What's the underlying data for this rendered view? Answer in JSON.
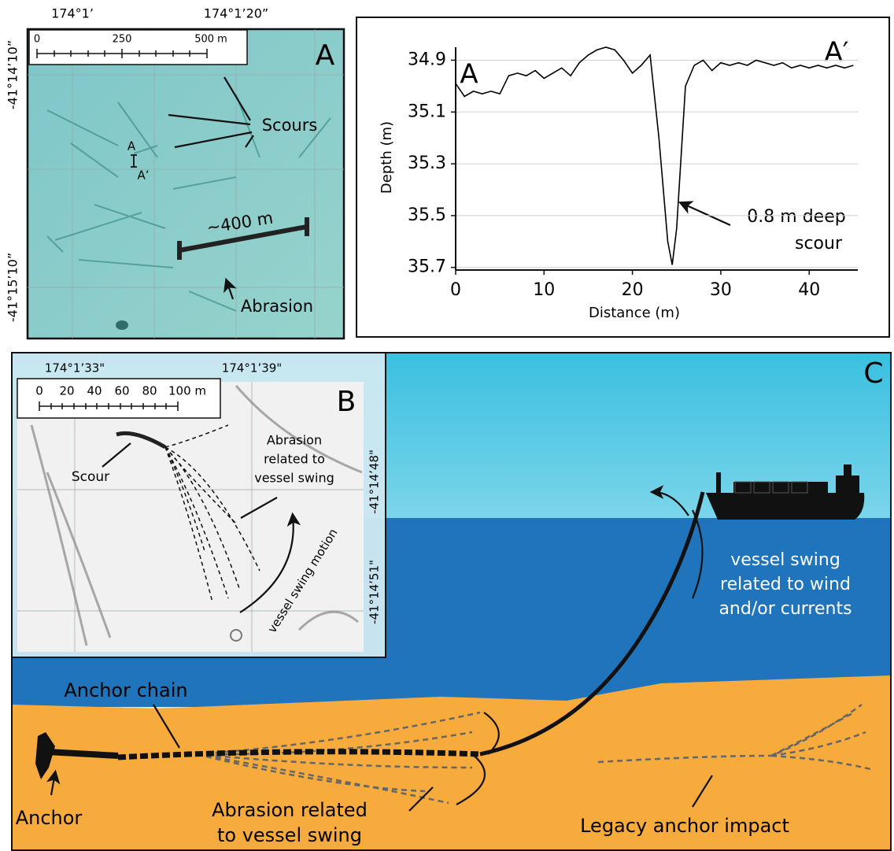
{
  "panel_a": {
    "label": "A",
    "x_labels": [
      "174°1’",
      "174°1’20”"
    ],
    "y_labels": [
      "-41°14’10”",
      "-41°15’10”"
    ],
    "scale_labels": [
      "0",
      "250",
      "500 m"
    ],
    "scours": "Scours",
    "abrasion": "Abrasion",
    "distance": "~400 m",
    "section_start": "A",
    "section_end": "A’"
  },
  "chart_data": {
    "type": "line",
    "x_label": "Distance (m)",
    "y_label": "Depth (m)",
    "start_label": "A",
    "end_label": "A′",
    "annotation": [
      "0.8 m deep",
      "scour"
    ],
    "x": [
      0,
      1,
      2,
      3,
      4,
      5,
      6,
      7,
      8,
      9,
      10,
      11,
      12,
      13,
      14,
      15,
      16,
      17,
      18,
      19,
      20,
      21,
      22,
      23,
      24,
      24.5,
      25,
      26,
      27,
      28,
      29,
      30,
      31,
      32,
      33,
      34,
      35,
      36,
      37,
      38,
      39,
      40,
      41,
      42,
      43,
      44,
      45
    ],
    "series": [
      {
        "color": "#000000",
        "values": [
          34.99,
          35.04,
          35.02,
          35.03,
          35.02,
          35.03,
          34.96,
          34.95,
          34.96,
          34.94,
          34.97,
          34.95,
          34.93,
          34.96,
          34.91,
          34.88,
          34.86,
          34.85,
          34.86,
          34.9,
          34.95,
          34.92,
          34.88,
          35.2,
          35.6,
          35.69,
          35.55,
          35.0,
          34.92,
          34.9,
          34.94,
          34.91,
          34.92,
          34.91,
          34.92,
          34.9,
          34.91,
          34.92,
          34.91,
          34.93,
          34.92,
          34.93,
          34.92,
          34.93,
          34.92,
          34.93,
          34.92
        ]
      }
    ],
    "xlim": [
      0,
      45.5
    ],
    "ylim": [
      34.85,
      35.71
    ],
    "y_inverted": true,
    "xticks": [
      0,
      10,
      20,
      30,
      40
    ],
    "yticks": [
      34.9,
      35.1,
      35.3,
      35.5,
      35.7
    ],
    "grid": true
  },
  "panel_b": {
    "label": "B",
    "x_labels": [
      "174°1’33\"",
      "174°1’39\""
    ],
    "y_labels": [
      "-41°14’48\"",
      "-41°14’51\""
    ],
    "scale_labels": [
      "0",
      "20",
      "40",
      "60",
      "80",
      "100 m"
    ],
    "scour": "Scour",
    "abrasion": [
      "Abrasion",
      "related to",
      "vessel swing"
    ],
    "motion": "vessel swing motion"
  },
  "panel_c": {
    "label": "C",
    "anchor_chain": "Anchor chain",
    "anchor": "Anchor",
    "abrasion": [
      "Abrasion related",
      "to vessel swing"
    ],
    "legacy": "Legacy anchor impact",
    "swing": [
      "vessel swing",
      "related to wind",
      "and/or currents"
    ]
  }
}
